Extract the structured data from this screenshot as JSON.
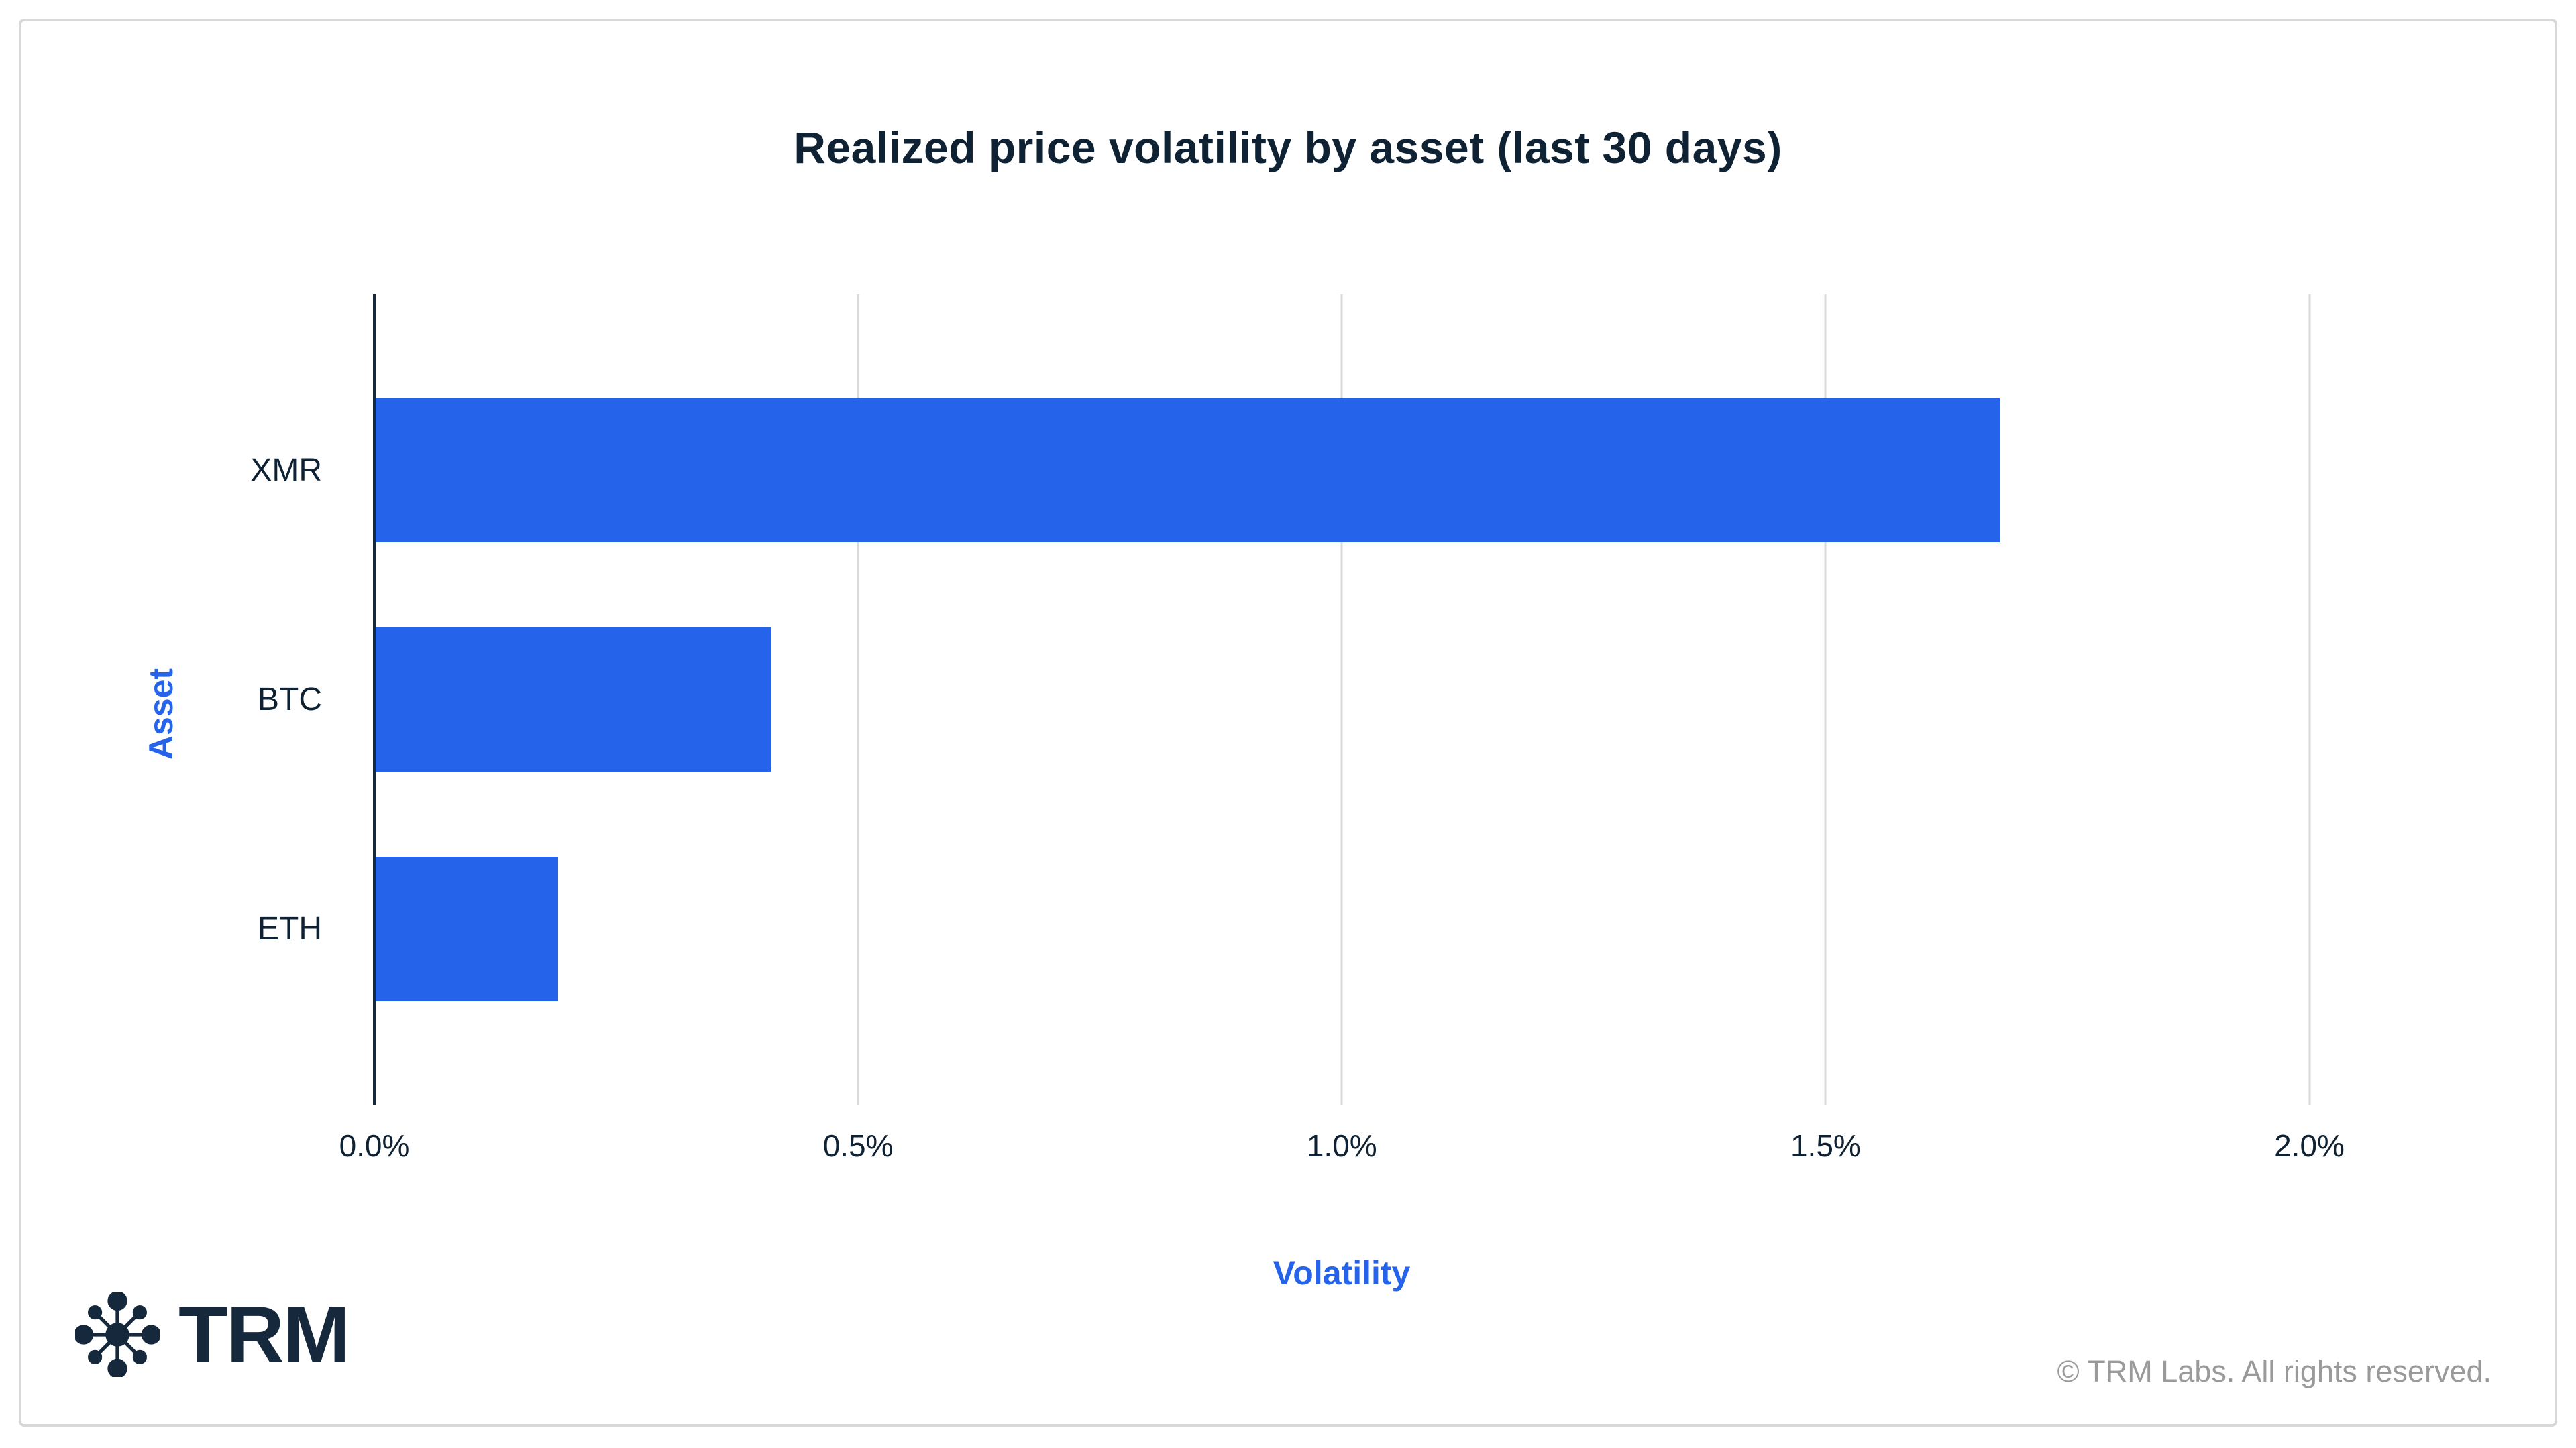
{
  "chart": {
    "title": "Realized price volatility by asset (last 30 days)",
    "xlabel": "Volatility",
    "ylabel": "Asset"
  },
  "chart_data": {
    "type": "bar",
    "orientation": "horizontal",
    "title": "Realized price volatility by asset (last 30 days)",
    "xlabel": "Volatility",
    "ylabel": "Asset",
    "categories": [
      "XMR",
      "BTC",
      "ETH"
    ],
    "values": [
      1.68,
      0.41,
      0.19
    ],
    "unit": "%",
    "xlim": [
      0,
      2.2
    ],
    "xticks": {
      "labels": [
        "0.0%",
        "0.5%",
        "1.0%",
        "1.5%",
        "2.0%"
      ],
      "values": [
        0,
        0.5,
        1.0,
        1.5,
        2.0
      ]
    },
    "grid": "vertical-gridlines-on",
    "legend": "none",
    "bar_color": "#2563eb"
  },
  "footer": {
    "logo_text": "TRM",
    "logo_icon": "trm-network-asterisk-icon",
    "copyright": "© TRM Labs. All rights reserved."
  },
  "colors": {
    "bar_blue": "#2563eb",
    "axis_label_blue": "#2563eb",
    "text_navy": "#0f2233",
    "logo_navy": "#16293c",
    "gridline_gray": "#d9d9d9",
    "card_border_gray": "#d8d8d8",
    "copyright_gray": "#9a9a9a",
    "background": "#ffffff"
  }
}
